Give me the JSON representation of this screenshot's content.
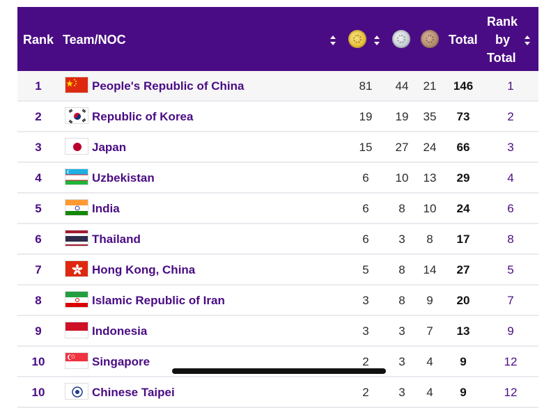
{
  "header": {
    "rank": "Rank",
    "team": "Team/NOC",
    "total": "Total",
    "rank_by_total_1": "Rank",
    "rank_by_total_2": "by",
    "rank_by_total_3": "Total"
  },
  "colors": {
    "header_bg": "#4a0c84",
    "link": "#4a0c84",
    "gold": "#d9a90e",
    "silver": "#a8b4bc",
    "bronze": "#9a6d4f"
  },
  "rows": [
    {
      "rank": "1",
      "team": "People's Republic of China",
      "flag": "china",
      "gold": "81",
      "silver": "44",
      "bronze": "21",
      "total": "146",
      "rank_by_total": "1"
    },
    {
      "rank": "2",
      "team": "Republic of Korea",
      "flag": "korea",
      "gold": "19",
      "silver": "19",
      "bronze": "35",
      "total": "73",
      "rank_by_total": "2"
    },
    {
      "rank": "3",
      "team": "Japan",
      "flag": "japan",
      "gold": "15",
      "silver": "27",
      "bronze": "24",
      "total": "66",
      "rank_by_total": "3"
    },
    {
      "rank": "4",
      "team": "Uzbekistan",
      "flag": "uzbekistan",
      "gold": "6",
      "silver": "10",
      "bronze": "13",
      "total": "29",
      "rank_by_total": "4"
    },
    {
      "rank": "5",
      "team": "India",
      "flag": "india",
      "gold": "6",
      "silver": "8",
      "bronze": "10",
      "total": "24",
      "rank_by_total": "6"
    },
    {
      "rank": "6",
      "team": "Thailand",
      "flag": "thailand",
      "gold": "6",
      "silver": "3",
      "bronze": "8",
      "total": "17",
      "rank_by_total": "8"
    },
    {
      "rank": "7",
      "team": "Hong Kong, China",
      "flag": "hongkong",
      "gold": "5",
      "silver": "8",
      "bronze": "14",
      "total": "27",
      "rank_by_total": "5"
    },
    {
      "rank": "8",
      "team": "Islamic Republic of Iran",
      "flag": "iran",
      "gold": "3",
      "silver": "8",
      "bronze": "9",
      "total": "20",
      "rank_by_total": "7"
    },
    {
      "rank": "9",
      "team": "Indonesia",
      "flag": "indonesia",
      "gold": "3",
      "silver": "3",
      "bronze": "7",
      "total": "13",
      "rank_by_total": "9"
    },
    {
      "rank": "10",
      "team": "Singapore",
      "flag": "singapore",
      "gold": "2",
      "silver": "3",
      "bronze": "4",
      "total": "9",
      "rank_by_total": "12"
    },
    {
      "rank": "10",
      "team": "Chinese Taipei",
      "flag": "chinesetaipei",
      "gold": "2",
      "silver": "3",
      "bronze": "4",
      "total": "9",
      "rank_by_total": "12"
    }
  ]
}
